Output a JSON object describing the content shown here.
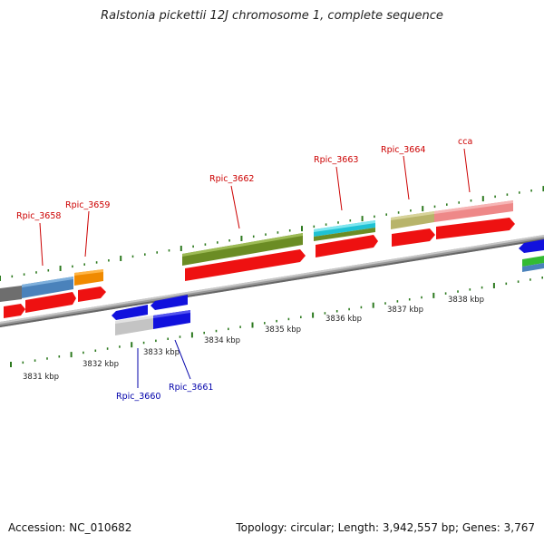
{
  "title": "Ralstonia pickettii 12J chromosome 1, complete sequence",
  "footer": {
    "accession": "Accession: NC_010682",
    "topology": "Topology: circular; Length: 3,942,557 bp; Genes: 3,767"
  },
  "colors": {
    "backbone": "#8a8a8a",
    "tick": "#2d7a1f",
    "kbp_label": "#222222",
    "gene_label_forward": "#cc0000",
    "gene_label_reverse": "#0000aa",
    "red_feature": "#ee1111",
    "blue_feature": "#1111dd"
  },
  "scale_labels": [
    "3831 kbp",
    "3832 kbp",
    "3833 kbp",
    "3834 kbp",
    "3835 kbp",
    "3836 kbp",
    "3837 kbp",
    "3838 kbp"
  ],
  "gene_labels_forward": [
    "Rpic_3658",
    "Rpic_3659",
    "Rpic_3662",
    "Rpic_3663",
    "Rpic_3664",
    "cca"
  ],
  "gene_labels_reverse": [
    "Rpic_3660",
    "Rpic_3661"
  ]
}
